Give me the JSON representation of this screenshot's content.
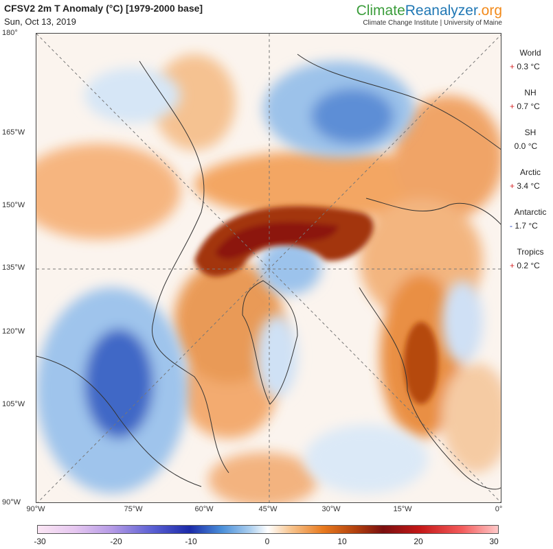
{
  "header": {
    "title": "CFSV2 2m T Anomaly (°C) [1979-2000 base]",
    "date": "Sun, Oct 13, 2019",
    "brand_part1": "Climate",
    "brand_part2": "Reanalyzer",
    "brand_part3": ".org",
    "institution": "Climate Change Institute | University of Maine"
  },
  "map": {
    "left_axis_labels": [
      "180°",
      "165°W",
      "150°W",
      "135°W",
      "120°W",
      "105°W",
      "90°W"
    ],
    "bottom_axis_labels": [
      "90°W",
      "75°W",
      "60°W",
      "45°W",
      "30°W",
      "15°W",
      "0°"
    ]
  },
  "stats": [
    {
      "name": "World",
      "sign": "+",
      "value": "0.3 °C"
    },
    {
      "name": "NH",
      "sign": "+",
      "value": "0.7 °C"
    },
    {
      "name": "SH",
      "sign": "",
      "value": "0.0 °C"
    },
    {
      "name": "Arctic",
      "sign": "+",
      "value": "3.4 °C"
    },
    {
      "name": "Antarctic",
      "sign": "-",
      "value": "1.7 °C"
    },
    {
      "name": "Tropics",
      "sign": "+",
      "value": "0.2 °C"
    }
  ],
  "colorbar": {
    "ticks": [
      "-30",
      "-20",
      "-10",
      "0",
      "10",
      "20",
      "30"
    ]
  },
  "colors": {
    "warm": "#e8852a",
    "hot": "#8b1a0e",
    "cold": "#2e5fc0",
    "positive_sign": "#d62728",
    "negative_sign": "#1f3fbf"
  }
}
